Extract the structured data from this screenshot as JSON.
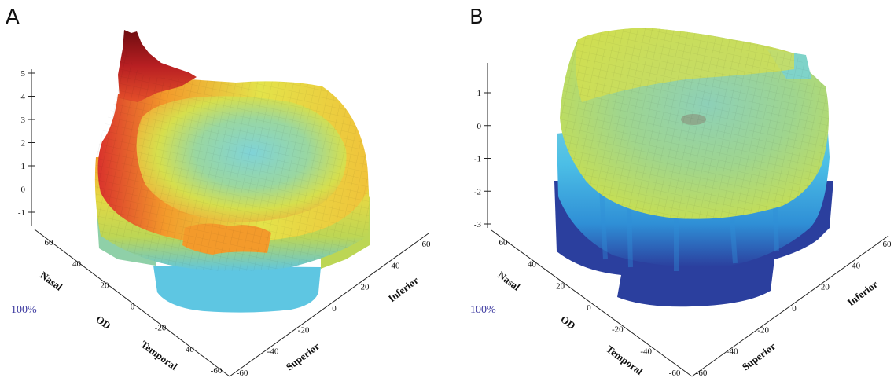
{
  "chart_data": [
    {
      "type": "surface",
      "panel_label": "A",
      "z_ticks": [
        "5",
        "4",
        "3",
        "2",
        "1",
        "0",
        "-1"
      ],
      "zlim": [
        -1,
        5
      ],
      "x_axis_name": "Nasal",
      "x_axis_mid": "OD",
      "x_axis_end": "Temporal",
      "x_ticks": [
        "60",
        "40",
        "20",
        "0",
        "-20",
        "-40",
        "-60"
      ],
      "y_axis_name": "Inferior",
      "y_axis_end": "Superior",
      "y_ticks": [
        "-60",
        "-40",
        "-20",
        "0",
        "20",
        "40",
        "60"
      ],
      "percent_label": "100%",
      "colormap": "jet",
      "peak_value": 5,
      "center_value": 0.5,
      "rim_value": 2.5,
      "skirt_value": -1
    },
    {
      "type": "surface",
      "panel_label": "B",
      "z_ticks": [
        "1",
        "0",
        "-1",
        "-2",
        "-3"
      ],
      "zlim": [
        -3,
        1.5
      ],
      "x_axis_name": "Nasal",
      "x_axis_mid": "OD",
      "x_axis_end": "Temporal",
      "x_ticks": [
        "60",
        "40",
        "20",
        "0",
        "-20",
        "-40",
        "-60"
      ],
      "y_axis_name": "Inferior",
      "y_axis_end": "Superior",
      "y_ticks": [
        "-60",
        "-40",
        "-20",
        "0",
        "20",
        "40",
        "60"
      ],
      "percent_label": "100%",
      "colormap": "jet",
      "top_value": 1.2,
      "center_value": 0,
      "skirt_value": -3
    }
  ],
  "colors": {
    "darkred": "#7a0f12",
    "red": "#d9322c",
    "orange": "#f39a2b",
    "yellow": "#e3e34a",
    "yellowgreen": "#bcd655",
    "green": "#8ccf7a",
    "cyan": "#7fd3d8",
    "lightblue": "#4cbfe6",
    "blue": "#2f8fd6",
    "navy": "#2b3f9e"
  }
}
